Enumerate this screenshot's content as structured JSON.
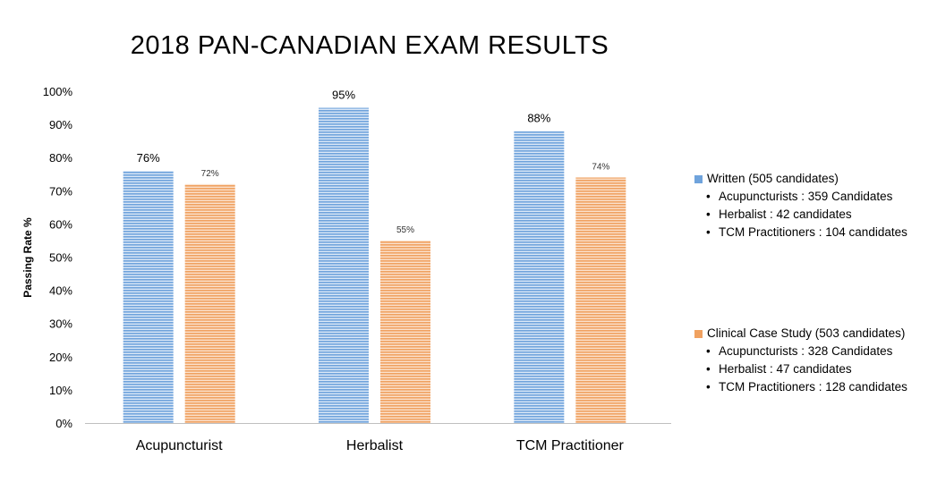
{
  "chart_data": {
    "type": "bar",
    "title": "2018 PAN-CANADIAN EXAM RESULTS",
    "xlabel": "",
    "ylabel": "Passing Rate %",
    "categories": [
      "Acupuncturist",
      "Herbalist",
      "TCM Practitioner"
    ],
    "ylim": [
      0,
      100
    ],
    "yticks": [
      "0%",
      "10%",
      "20%",
      "30%",
      "40%",
      "50%",
      "60%",
      "70%",
      "80%",
      "90%",
      "100%"
    ],
    "series": [
      {
        "name": "Written (505 candidates)",
        "values": [
          76,
          95,
          88
        ],
        "labels": [
          "76%",
          "95%",
          "88%"
        ],
        "color": "#6fa3dc"
      },
      {
        "name": "Clinical Case Study (503 candidates)",
        "values": [
          72,
          55,
          74
        ],
        "labels": [
          "72%",
          "55%",
          "74%"
        ],
        "color": "#f0a160"
      }
    ]
  },
  "legend": {
    "written": {
      "label": "Written (505 candidates)",
      "items": [
        "Acupuncturists : 359 Candidates",
        "Herbalist : 42 candidates",
        "TCM Practitioners : 104 candidates"
      ]
    },
    "clinical": {
      "label": "Clinical Case Study (503 candidates)",
      "items": [
        "Acupuncturists : 328 Candidates",
        "Herbalist : 47 candidates",
        "TCM Practitioners : 128 candidates"
      ]
    }
  },
  "colors": {
    "written": "#6fa3dc",
    "clinical": "#f0a160",
    "axis": "#bfbfbf"
  }
}
